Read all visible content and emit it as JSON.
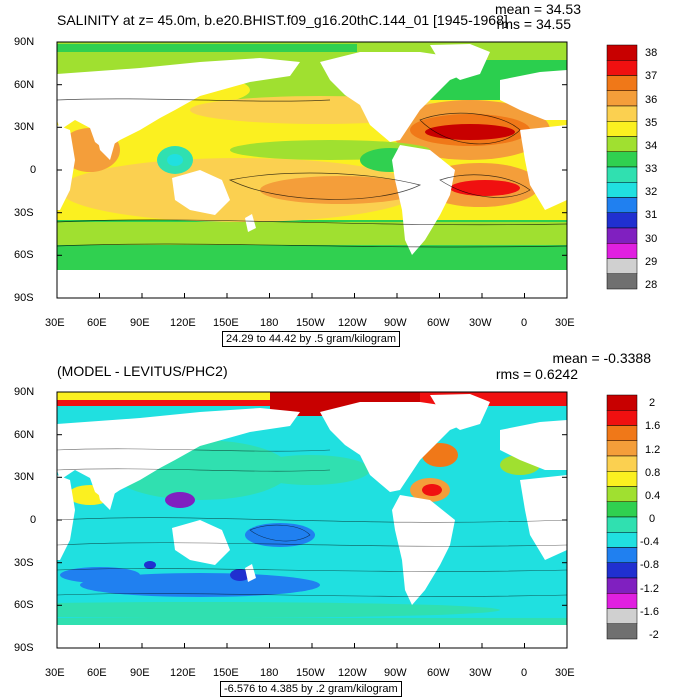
{
  "panels": [
    {
      "title": "SALINITY at z=  45.0m, b.e20.BHIST.f09_g16.20thC.144_01 [1945-1968]",
      "mean_label": "mean = 34.53",
      "rms_label": "rms = 34.55",
      "info": "24.29 to 44.42 by .5 gram/kilogram",
      "y_ticks": [
        "90N",
        "60N",
        "30N",
        "0",
        "30S",
        "60S",
        "90S"
      ],
      "x_ticks": [
        "30E",
        "60E",
        "90E",
        "120E",
        "150E",
        "180",
        "150W",
        "120W",
        "90W",
        "60W",
        "30W",
        "0",
        "30E"
      ],
      "colorbar": {
        "labels": [
          "38",
          "37",
          "36",
          "35",
          "34",
          "33",
          "32",
          "31",
          "30",
          "29",
          "28"
        ],
        "colors": [
          "#c80000",
          "#f01010",
          "#f07818",
          "#f49e3a",
          "#fbd050",
          "#fbf020",
          "#a0e030",
          "#30d050",
          "#30e0b0",
          "#20e0e0",
          "#2080f0",
          "#2030d0",
          "#8020c0",
          "#e020e0",
          "#d0d0d0",
          "#707070"
        ]
      }
    },
    {
      "title": "(MODEL - LEVITUS/PHC2)",
      "mean_label": "mean = -0.3388",
      "rms_label": "rms = 0.6242",
      "info": "-6.576 to 4.385 by .2 gram/kilogram",
      "y_ticks": [
        "90N",
        "60N",
        "30N",
        "0",
        "30S",
        "60S",
        "90S"
      ],
      "x_ticks": [
        "30E",
        "60E",
        "90E",
        "120E",
        "150E",
        "180",
        "150W",
        "120W",
        "90W",
        "60W",
        "30W",
        "0",
        "30E"
      ],
      "colorbar": {
        "labels": [
          "2",
          "1.6",
          "1.2",
          "0.8",
          "0.4",
          "0",
          "-0.4",
          "-0.8",
          "-1.2",
          "-1.6",
          "-2"
        ],
        "colors": [
          "#c80000",
          "#f01010",
          "#f07818",
          "#f49e3a",
          "#fbd050",
          "#fbf020",
          "#a0e030",
          "#30d050",
          "#30e0b0",
          "#20e0e0",
          "#2080f0",
          "#2030d0",
          "#8020c0",
          "#e020e0",
          "#d0d0d0",
          "#707070"
        ]
      }
    }
  ]
}
